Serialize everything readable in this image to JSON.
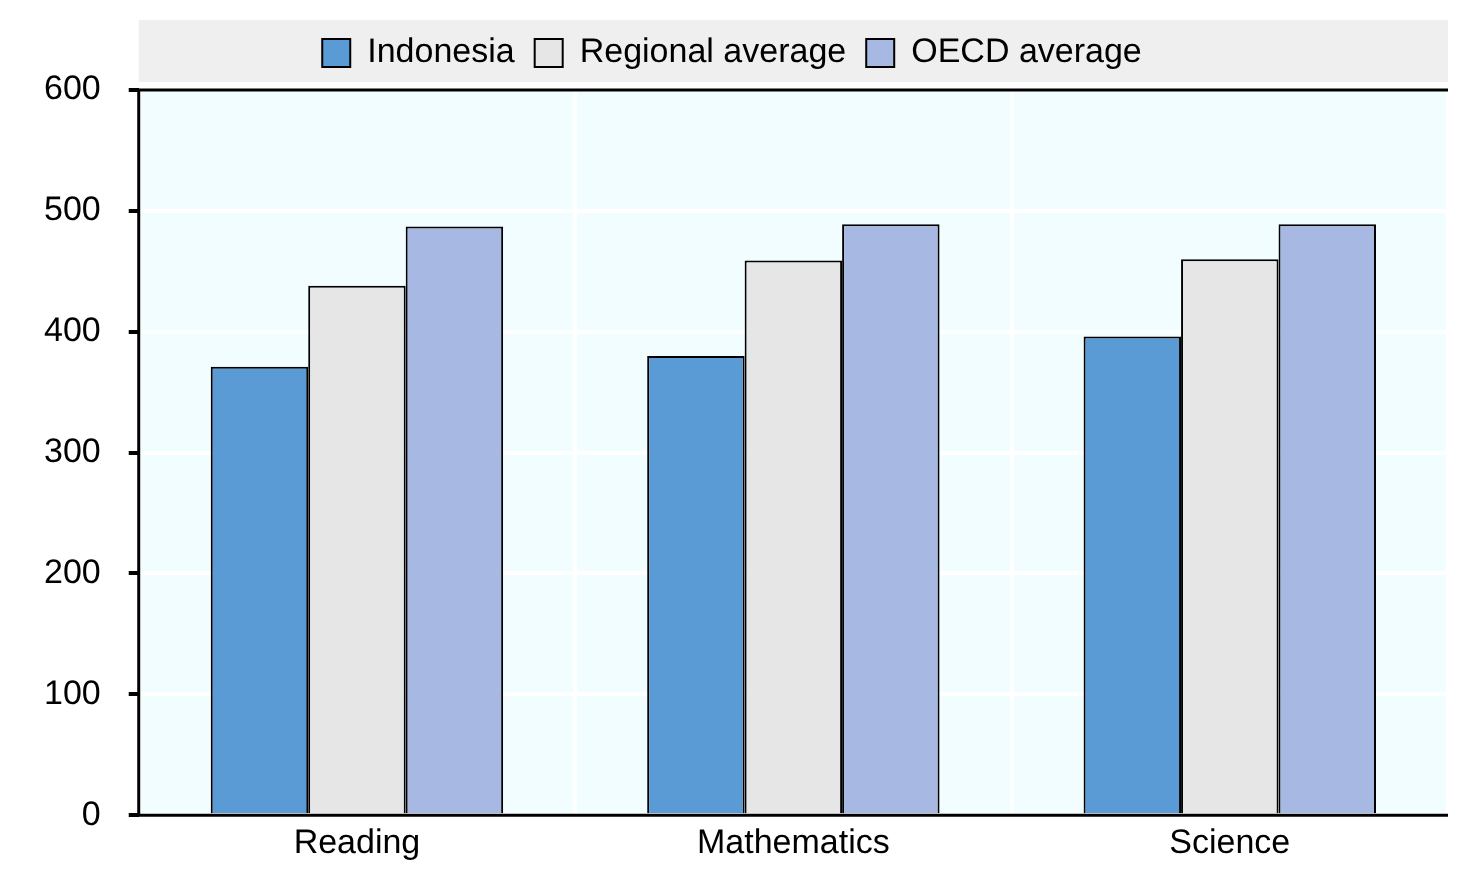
{
  "chart_data": {
    "type": "bar",
    "categories": [
      "Reading",
      "Mathematics",
      "Science"
    ],
    "series": [
      {
        "name": "Indonesia",
        "color": "#5b9bd5",
        "values": [
          371,
          380,
          396
        ]
      },
      {
        "name": "Regional average",
        "color": "#e6e6e6",
        "values": [
          438,
          459,
          460
        ]
      },
      {
        "name": "OECD average",
        "color": "#a7b8e2",
        "values": [
          487,
          489,
          489
        ]
      }
    ],
    "ylim": [
      0,
      600
    ],
    "yticks": [
      0,
      100,
      200,
      300,
      400,
      500,
      600
    ],
    "grid": true,
    "legend": "top"
  }
}
